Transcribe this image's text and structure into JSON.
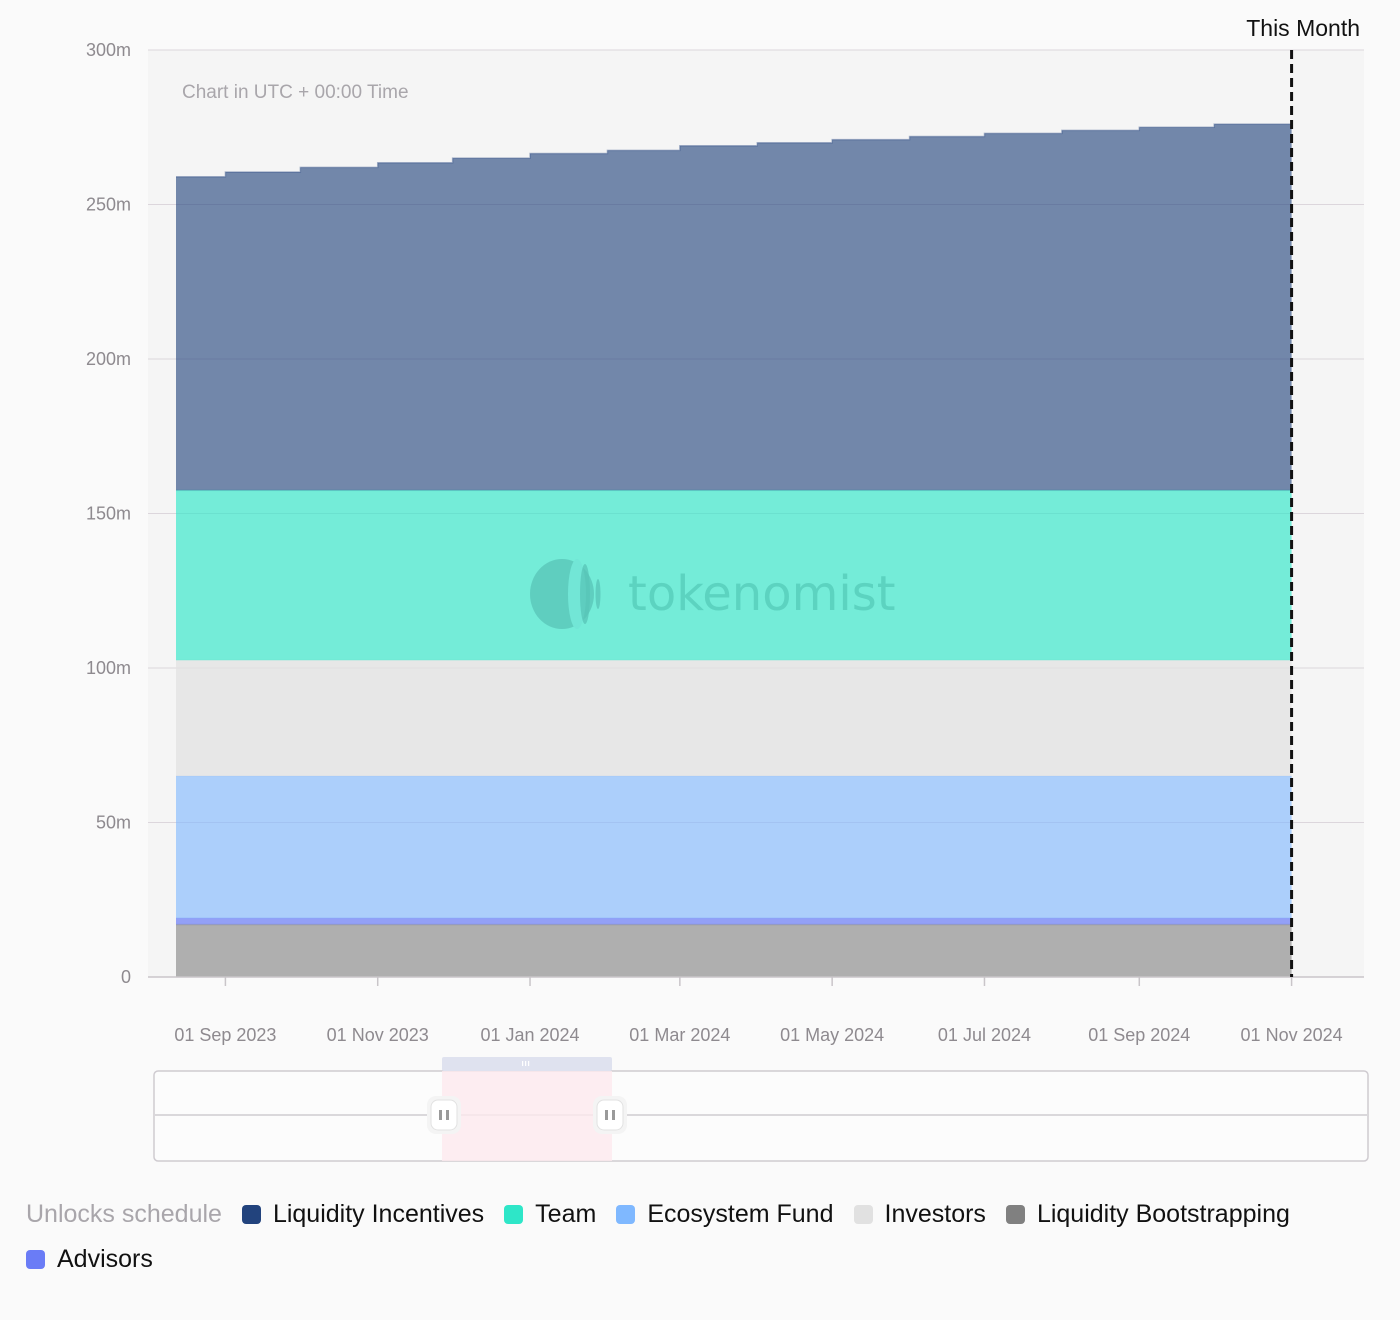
{
  "chart_data": {
    "type": "area",
    "note": "Chart in UTC + 00:00 Time",
    "marker_label": "This Month",
    "watermark": "tokenomist",
    "y_ticks": [
      "0",
      "50m",
      "100m",
      "150m",
      "200m",
      "250m",
      "300m"
    ],
    "ylim": [
      0,
      300000000
    ],
    "x_ticks": [
      {
        "label": "01 Sep 2023",
        "date": "2023-09-01"
      },
      {
        "label": "01 Nov 2023",
        "date": "2023-11-01"
      },
      {
        "label": "01 Jan 2024",
        "date": "2024-01-01"
      },
      {
        "label": "01 Mar 2024",
        "date": "2024-03-01"
      },
      {
        "label": "01 May 2024",
        "date": "2024-05-01"
      },
      {
        "label": "01 Jul 2024",
        "date": "2024-07-01"
      },
      {
        "label": "01 Sep 2024",
        "date": "2024-09-01"
      },
      {
        "label": "01 Nov 2024",
        "date": "2024-11-01"
      }
    ],
    "xlim": [
      "2023-08-01",
      "2024-11-30"
    ],
    "marker_date": "2024-11-01",
    "grid": true,
    "x": [
      "2023-08-01",
      "2023-09-01",
      "2023-10-01",
      "2023-11-01",
      "2023-12-01",
      "2024-01-01",
      "2024-02-01",
      "2024-03-01",
      "2024-04-01",
      "2024-05-01",
      "2024-06-01",
      "2024-07-01",
      "2024-08-01",
      "2024-09-01",
      "2024-10-01",
      "2024-11-01"
    ],
    "series": [
      {
        "name": "Liquidity Bootstrapping",
        "color": "#808080",
        "values": [
          17000000,
          17000000,
          17000000,
          17000000,
          17000000,
          17000000,
          17000000,
          17000000,
          17000000,
          17000000,
          17000000,
          17000000,
          17000000,
          17000000,
          17000000,
          17000000
        ]
      },
      {
        "name": "Advisors",
        "color": "#6a7cf6",
        "values": [
          2000000,
          2000000,
          2000000,
          2000000,
          2000000,
          2000000,
          2000000,
          2000000,
          2000000,
          2000000,
          2000000,
          2000000,
          2000000,
          2000000,
          2000000,
          2000000
        ]
      },
      {
        "name": "Ecosystem Fund",
        "color": "#7fb8ff",
        "values": [
          46000000,
          46000000,
          46000000,
          46000000,
          46000000,
          46000000,
          46000000,
          46000000,
          46000000,
          46000000,
          46000000,
          46000000,
          46000000,
          46000000,
          46000000,
          46000000
        ]
      },
      {
        "name": "Investors",
        "color": "#e1e1e1",
        "values": [
          37500000,
          37500000,
          37500000,
          37500000,
          37500000,
          37500000,
          37500000,
          37500000,
          37500000,
          37500000,
          37500000,
          37500000,
          37500000,
          37500000,
          37500000,
          37500000
        ]
      },
      {
        "name": "Team",
        "color": "#2ee6c8",
        "values": [
          55000000,
          55000000,
          55000000,
          55000000,
          55000000,
          55000000,
          55000000,
          55000000,
          55000000,
          55000000,
          55000000,
          55000000,
          55000000,
          55000000,
          55000000,
          55000000
        ]
      },
      {
        "name": "Liquidity Incentives",
        "color": "#22437d",
        "values": [
          101500000,
          103000000,
          104500000,
          106000000,
          107500000,
          109000000,
          110000000,
          111500000,
          112500000,
          113500000,
          114500000,
          115500000,
          116500000,
          117500000,
          118500000,
          119500000
        ]
      }
    ]
  },
  "legend": {
    "title": "Unlocks schedule",
    "items": [
      {
        "label": "Liquidity Incentives",
        "color": "#22437d"
      },
      {
        "label": "Team",
        "color": "#2ee6c8"
      },
      {
        "label": "Ecosystem Fund",
        "color": "#7fb8ff"
      },
      {
        "label": "Investors",
        "color": "#e1e1e1"
      },
      {
        "label": "Liquidity Bootstrapping",
        "color": "#808080"
      },
      {
        "label": "Advisors",
        "color": "#6a7cf6"
      }
    ]
  }
}
